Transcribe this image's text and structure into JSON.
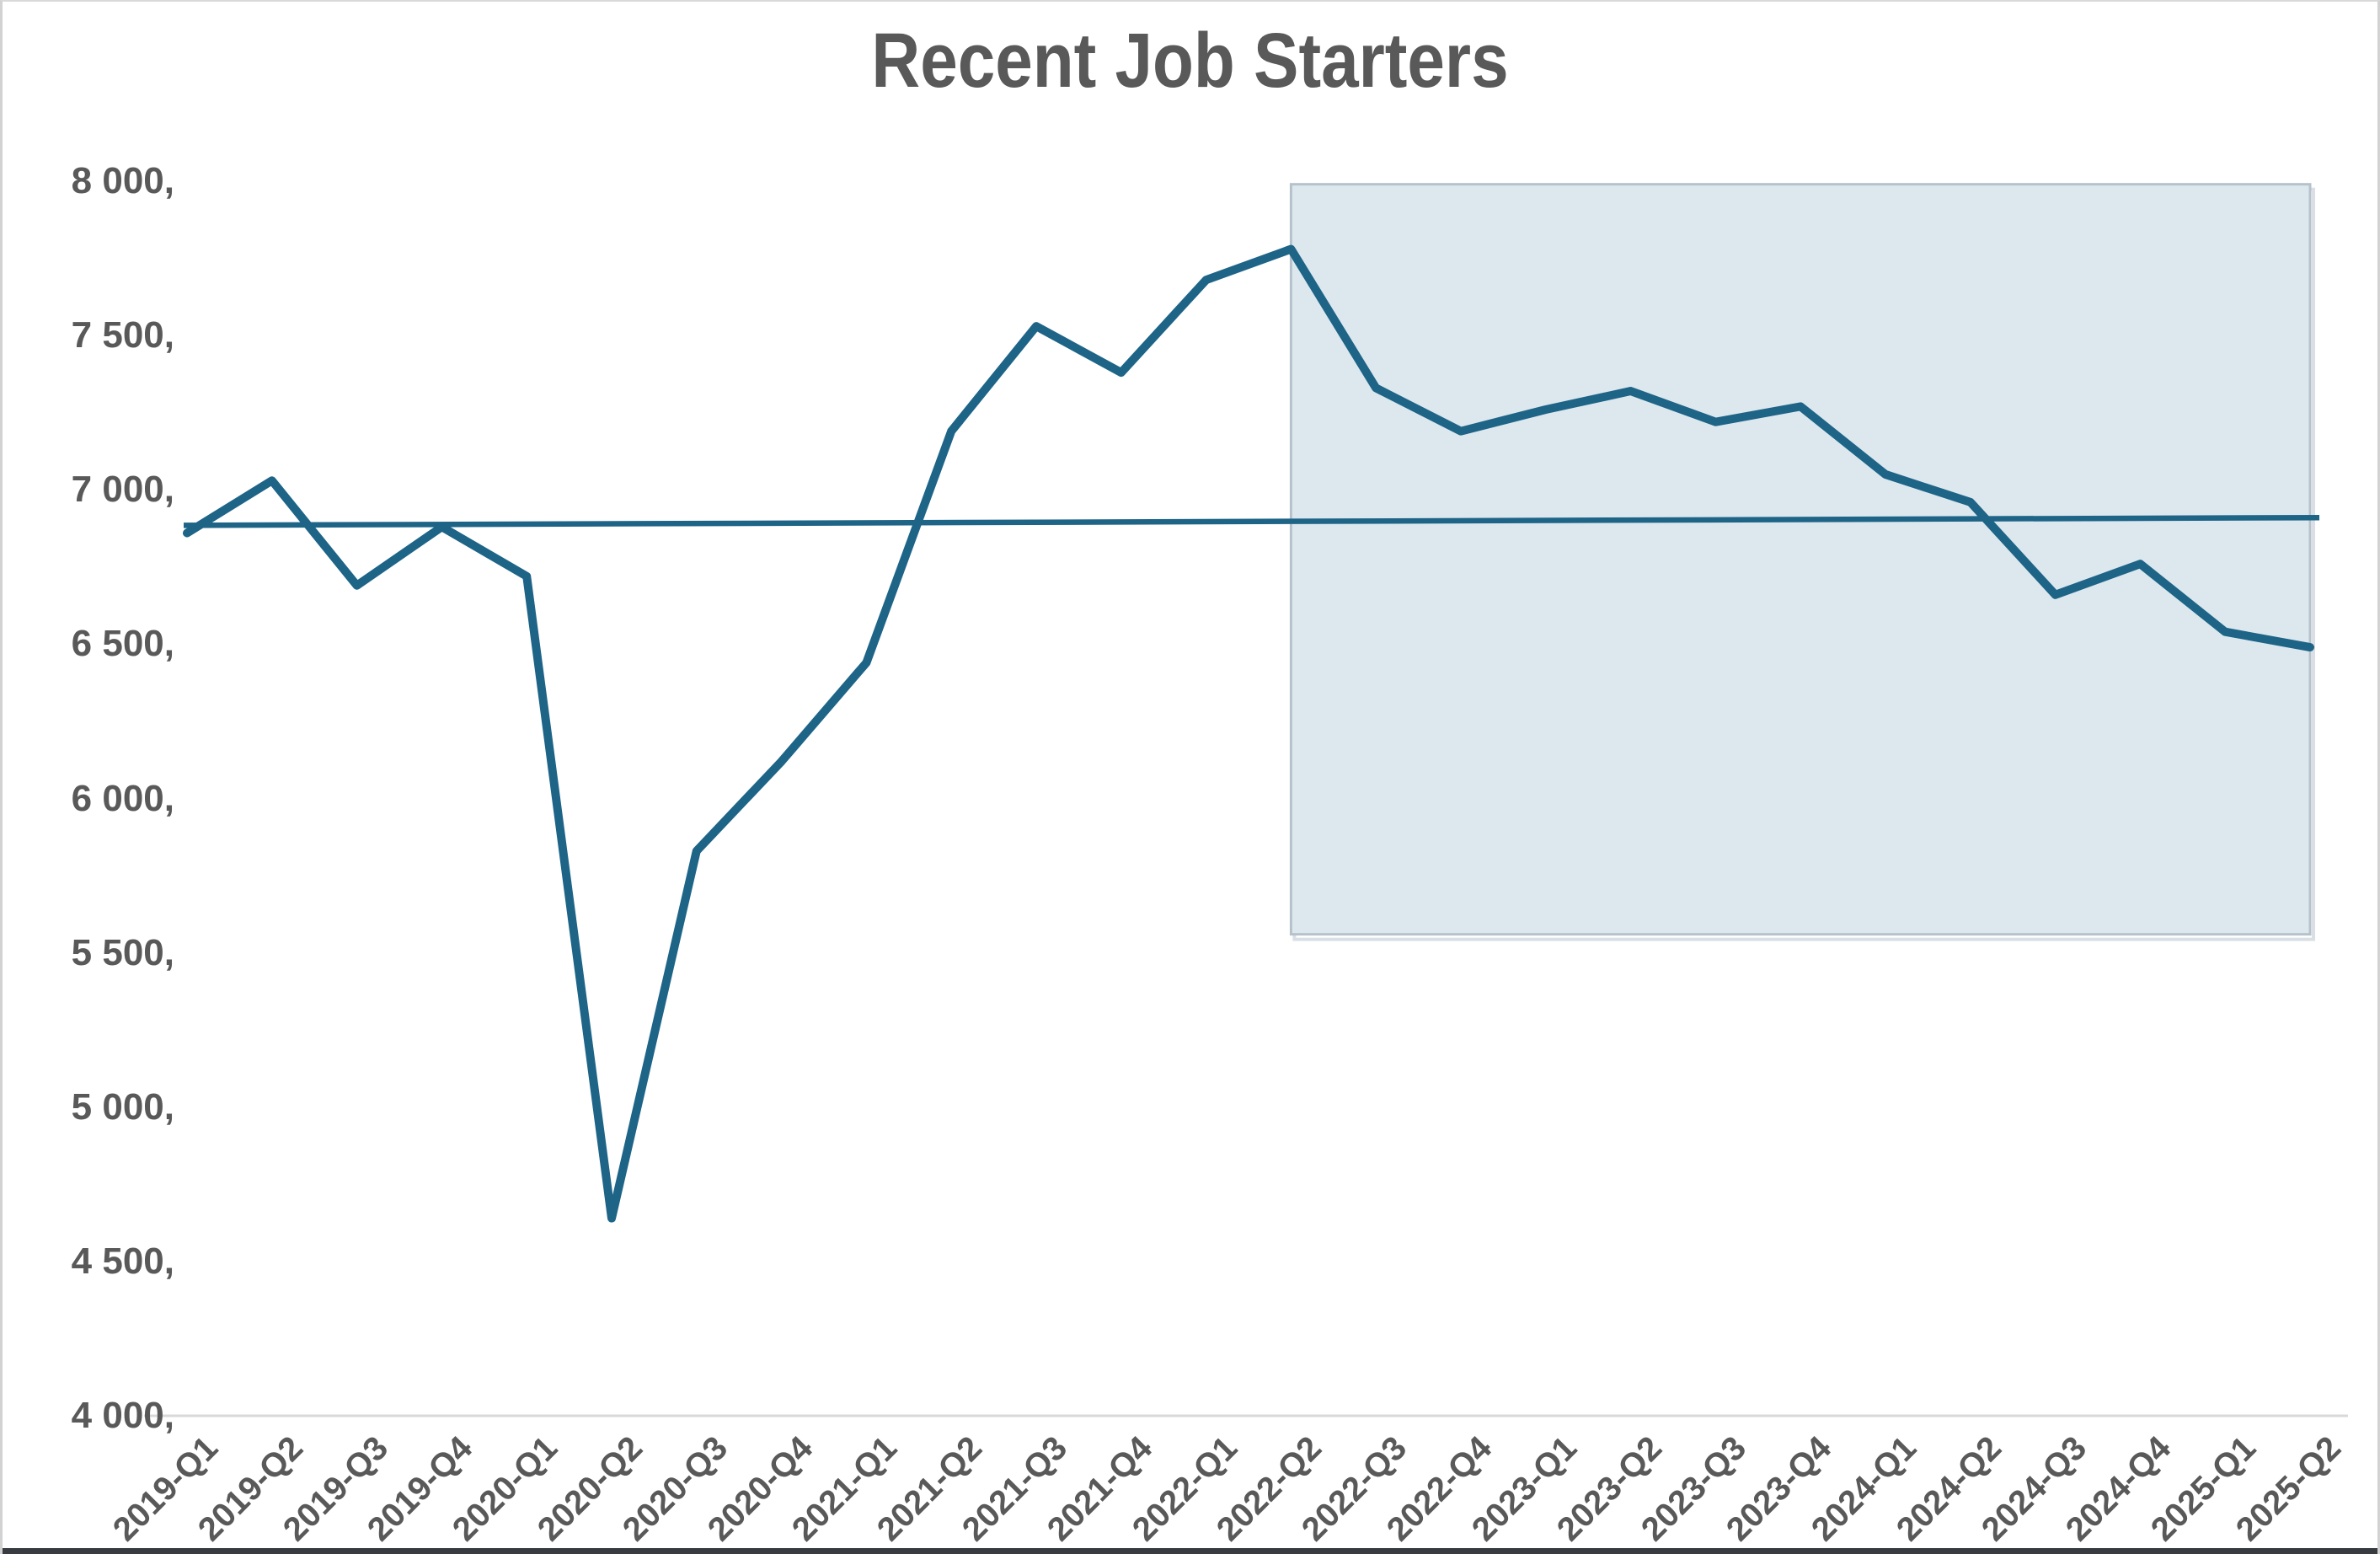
{
  "title": "Recent Job Starters",
  "colors": {
    "line": "#1e6487",
    "trend_line": "#1e6487",
    "highlight_fill": "#dde8ee",
    "highlight_border": "#b6c2cb",
    "highlight_shadow": "#d9dfe4",
    "title_text": "#595959",
    "tick_text": "#595959",
    "axis_line": "#d9d9d9",
    "frame_border": "#d2d2d2",
    "window_bottom_edge": "#383c41",
    "background": "#ffffff"
  },
  "chart_data": {
    "type": "line",
    "title": "Recent Job Starters",
    "xlabel": "",
    "ylabel": "",
    "categories": [
      "2019-Q1",
      "2019-Q2",
      "2019-Q3",
      "2019-Q4",
      "2020-Q1",
      "2020-Q2",
      "2020-Q3",
      "2020-Q4",
      "2021-Q1",
      "2021-Q2",
      "2021-Q3",
      "2021-Q4",
      "2022-Q1",
      "2022-Q2",
      "2022-Q3",
      "2022-Q4",
      "2023-Q1",
      "2023-Q2",
      "2023-Q3",
      "2023-Q4",
      "2024-Q1",
      "2024-Q2",
      "2024-Q3",
      "2024-Q4",
      "2025-Q1",
      "2025-Q2"
    ],
    "series": [
      {
        "name": "Recent job starters",
        "values": [
          6860,
          7030,
          6690,
          6880,
          6720,
          4640,
          5830,
          6120,
          6440,
          7190,
          7530,
          7380,
          7680,
          7780,
          7330,
          7190,
          7260,
          7320,
          7220,
          7270,
          7050,
          6960,
          6660,
          6760,
          6540,
          6490
        ]
      }
    ],
    "trendline": {
      "name": "Linear trend line",
      "start_value": 6885,
      "end_value": 6910
    },
    "highlight_region": {
      "from_category": "2022-Q2",
      "to_category": "2025-Q2",
      "value_top": 7990,
      "value_bottom": 5560
    },
    "ylim": [
      4000,
      8000
    ],
    "ytick_step": 500,
    "yticks": [
      {
        "v": 8000,
        "label": "8 000,"
      },
      {
        "v": 7500,
        "label": "7 500,"
      },
      {
        "v": 7000,
        "label": "7 000,"
      },
      {
        "v": 6500,
        "label": "6 500,"
      },
      {
        "v": 6000,
        "label": "6 000,"
      },
      {
        "v": 5500,
        "label": "5 500,"
      },
      {
        "v": 5000,
        "label": "5 000,"
      },
      {
        "v": 4500,
        "label": "4 500,"
      },
      {
        "v": 4000,
        "label": "4 000,"
      }
    ],
    "grid": false,
    "legend": "none",
    "x_tick_rotation_deg": -45
  }
}
